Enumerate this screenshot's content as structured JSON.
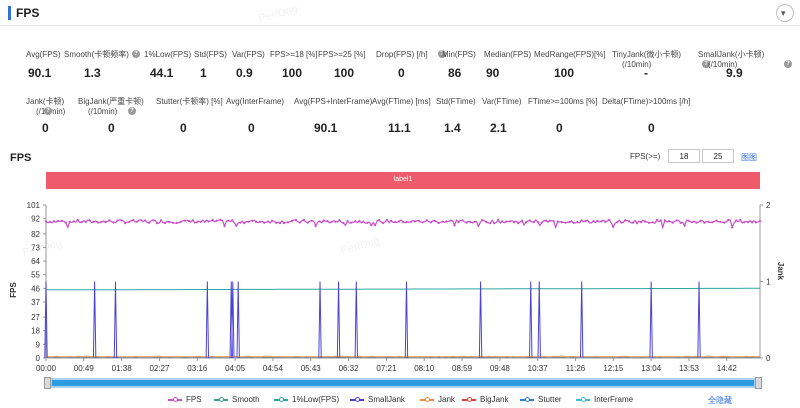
{
  "panel": {
    "title": "FPS",
    "collapse_icon": "chevron-down-icon"
  },
  "watermark": "PerfDog",
  "metrics_row1": [
    {
      "label": "Avg(FPS)",
      "value": "90.1",
      "help": false
    },
    {
      "label": "Smooth(卡顿频率)",
      "value": "1.3",
      "help": true
    },
    {
      "label": "1%Low(FPS)",
      "value": "44.1",
      "help": false
    },
    {
      "label": "Std(FPS)",
      "value": "1",
      "help": false
    },
    {
      "label": "Var(FPS)",
      "value": "0.9",
      "help": false
    },
    {
      "label": "FPS>=18 [%]",
      "value": "100",
      "help": false
    },
    {
      "label": "FPS>=25 [%]",
      "value": "100",
      "help": false
    },
    {
      "label": "Drop(FPS) [/h]",
      "value": "0",
      "help": true
    },
    {
      "label": "Min(FPS)",
      "value": "86",
      "help": false
    },
    {
      "label": "Median(FPS)",
      "value": "90",
      "help": false
    },
    {
      "label": "MedRange(FPS)[%]",
      "value": "100",
      "help": false
    },
    {
      "label": "TinyJank(微小卡顿)",
      "label2": "(/10min)",
      "value": "-",
      "help": true
    },
    {
      "label": "SmallJank(小卡顿)",
      "label2": "(/10min)",
      "value": "9.9",
      "help": true
    }
  ],
  "metrics_row2": [
    {
      "label": "Jank(卡顿)",
      "label2": "(/10min)",
      "value": "0",
      "help": true
    },
    {
      "label": "BigJank(严重卡顿)",
      "label2": "(/10min)",
      "value": "0",
      "help": true
    },
    {
      "label": "Stutter(卡顿率) [%]",
      "value": "0",
      "help": false
    },
    {
      "label": "Avg(InterFrame)",
      "value": "0",
      "help": false
    },
    {
      "label": "Avg(FPS+InterFrame)",
      "value": "90.1",
      "help": false
    },
    {
      "label": "Avg(FTime) [ms]",
      "value": "11.1",
      "help": false
    },
    {
      "label": "Std(FTime)",
      "value": "1.4",
      "help": false
    },
    {
      "label": "Var(FTime)",
      "value": "2.1",
      "help": false
    },
    {
      "label": "FTime>=100ms [%]",
      "value": "0",
      "help": false
    },
    {
      "label": "Delta(FTime)>100ms [/h]",
      "value": "0",
      "help": false
    }
  ],
  "chart_header": {
    "title": "FPS",
    "fps_threshold_label": "FPS(>=)",
    "fps_threshold_1": "18",
    "fps_threshold_2": "25",
    "legend_link": "图图"
  },
  "label_band": "label1",
  "legend_toggle": "全隐藏",
  "colors": {
    "fps": "#c94fc9",
    "smooth": "#3a9e8a",
    "low1": "#2fa6a0",
    "smalljank": "#4c43d6",
    "jank": "#f08c3a",
    "bigjank": "#d9413b",
    "stutter": "#2d7fd1",
    "interframe": "#3bbcd6",
    "label_band": "#ef5b6a"
  },
  "chart_data": {
    "type": "line",
    "title": "",
    "xlabel": "",
    "ylabel": "FPS",
    "y2label": "Jank",
    "ylim": [
      0,
      101
    ],
    "y2lim": [
      0,
      2
    ],
    "yticks": [
      0,
      9,
      18,
      27,
      37,
      46,
      55,
      64,
      73,
      82,
      92,
      101
    ],
    "y2ticks": [
      0,
      1,
      2
    ],
    "x_tick_labels": [
      "00:00",
      "00:49",
      "01:38",
      "02:27",
      "03:16",
      "04:05",
      "04:54",
      "05:43",
      "06:32",
      "07:21",
      "08:10",
      "08:59",
      "09:48",
      "10:37",
      "11:26",
      "12:15",
      "13:04",
      "13:53",
      "14:42"
    ],
    "x_range_seconds": [
      0,
      925
    ],
    "legend_position": "bottom",
    "series": [
      {
        "name": "FPS",
        "axis": "left",
        "approx_mean": 90.1,
        "range": [
          86,
          92
        ]
      },
      {
        "name": "Smooth",
        "axis": "left"
      },
      {
        "name": "1%Low(FPS)",
        "axis": "left",
        "values": [
          45,
          46
        ]
      },
      {
        "name": "SmallJank",
        "axis": "right",
        "spike_times": [
          "00:00",
          "01:03",
          "01:30",
          "03:29",
          "04:00",
          "04:02",
          "04:09",
          "05:55",
          "06:19",
          "06:42",
          "07:47",
          "09:23",
          "10:28",
          "10:39",
          "11:34",
          "13:04",
          "14:06"
        ],
        "spike_value": 1
      },
      {
        "name": "Jank",
        "axis": "right",
        "value": 0
      },
      {
        "name": "BigJank",
        "axis": "right",
        "value": 0
      },
      {
        "name": "Stutter",
        "axis": "right",
        "value": 0
      },
      {
        "name": "InterFrame",
        "axis": "left",
        "value": 0
      }
    ]
  }
}
